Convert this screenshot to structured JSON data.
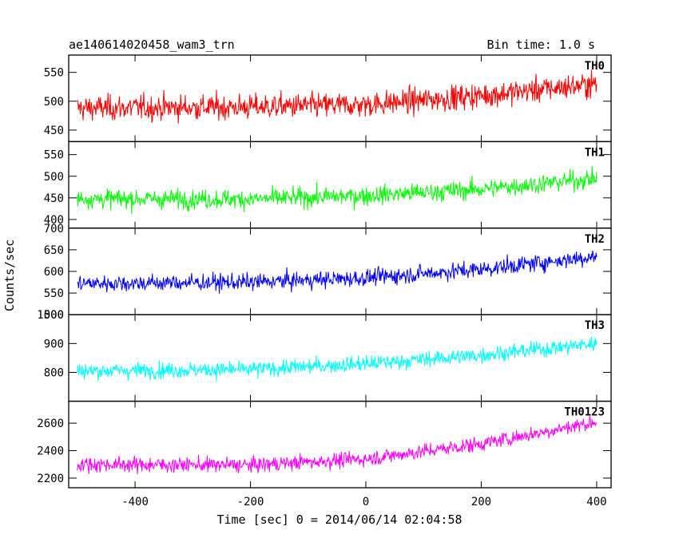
{
  "header": {
    "file_title": "ae140614020458_wam3_trn",
    "bin_time": "Bin time: 1.0 s"
  },
  "chart_data": {
    "type": "line",
    "xlabel": "Time [sec] 0 = 2014/06/14 02:04:58",
    "ylabel": "Counts/sec",
    "xlim": [
      -515,
      425
    ],
    "xticks": [
      -400,
      -200,
      0,
      200,
      400
    ],
    "x_range_data": [
      -500,
      400
    ],
    "bin_time_s": 1.0,
    "panels": [
      {
        "name": "TH0",
        "color": "#ff0000",
        "ylim": [
          430,
          580
        ],
        "yticks": [
          450,
          500,
          550
        ],
        "trend": {
          "x": [
            -500,
            -200,
            0,
            200,
            400
          ],
          "y": [
            488,
            490,
            494,
            510,
            530
          ]
        },
        "noise_amplitude": 28
      },
      {
        "name": "TH1",
        "color": "#00ff00",
        "ylim": [
          380,
          580
        ],
        "yticks": [
          400,
          450,
          500,
          550
        ],
        "trend": {
          "x": [
            -500,
            -200,
            0,
            200,
            400
          ],
          "y": [
            448,
            447,
            455,
            470,
            495
          ]
        },
        "noise_amplitude": 28
      },
      {
        "name": "TH2",
        "color": "#0000ff",
        "ylim": [
          500,
          700
        ],
        "yticks": [
          500,
          550,
          600,
          650,
          700
        ],
        "trend": {
          "x": [
            -500,
            -200,
            0,
            200,
            400
          ],
          "y": [
            572,
            575,
            585,
            605,
            635
          ]
        },
        "noise_amplitude": 25
      },
      {
        "name": "TH3",
        "color": "#00ffff",
        "ylim": [
          700,
          1000
        ],
        "yticks": [
          800,
          900,
          1000
        ],
        "trend": {
          "x": [
            -500,
            -200,
            0,
            200,
            400
          ],
          "y": [
            805,
            810,
            830,
            860,
            900
          ]
        },
        "noise_amplitude": 35
      },
      {
        "name": "TH0123",
        "color": "#ff00ff",
        "ylim": [
          2130,
          2760
        ],
        "yticks": [
          2200,
          2400,
          2600
        ],
        "trend": {
          "x": [
            -500,
            -200,
            0,
            200,
            400
          ],
          "y": [
            2300,
            2295,
            2340,
            2450,
            2610
          ]
        },
        "noise_amplitude": 70
      }
    ]
  }
}
